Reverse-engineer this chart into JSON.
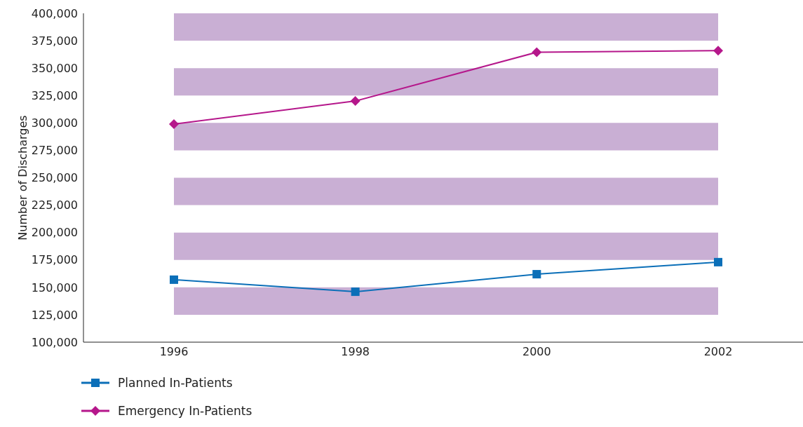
{
  "chart_data": {
    "type": "line",
    "ylabel": "Number of Discharges",
    "categories": [
      "1996",
      "1998",
      "2000",
      "2002"
    ],
    "series": [
      {
        "name": "Planned In-Patients",
        "color": "#0b6fb8",
        "marker": "square",
        "values": [
          157000,
          146000,
          162000,
          173000
        ]
      },
      {
        "name": "Emergency In-Patients",
        "color": "#b5178b",
        "marker": "diamond",
        "values": [
          299000,
          320000,
          364500,
          366000
        ]
      }
    ],
    "ylim": [
      100000,
      400000
    ],
    "yticks": [
      {
        "value": 100000,
        "label": "100,000"
      },
      {
        "value": 125000,
        "label": "125,000"
      },
      {
        "value": 150000,
        "label": "150,000"
      },
      {
        "value": 175000,
        "label": "175,000"
      },
      {
        "value": 200000,
        "label": "200,000"
      },
      {
        "value": 225000,
        "label": "225,000"
      },
      {
        "value": 250000,
        "label": "250,000"
      },
      {
        "value": 275000,
        "label": "275,000"
      },
      {
        "value": 300000,
        "label": "300,000"
      },
      {
        "value": 325000,
        "label": "325,000"
      },
      {
        "value": 350000,
        "label": "350,000"
      },
      {
        "value": 375000,
        "label": "375,000"
      },
      {
        "value": 400000,
        "label": "400,000"
      }
    ],
    "bands": [
      {
        "axis": "y",
        "from": 125000,
        "to": 150000,
        "color": "#c9afd4"
      },
      {
        "axis": "y",
        "from": 175000,
        "to": 200000,
        "color": "#c9afd4"
      },
      {
        "axis": "y",
        "from": 225000,
        "to": 250000,
        "color": "#c9afd4"
      },
      {
        "axis": "y",
        "from": 275000,
        "to": 300000,
        "color": "#c9afd4"
      },
      {
        "axis": "y",
        "from": 325000,
        "to": 350000,
        "color": "#c9afd4"
      },
      {
        "axis": "y",
        "from": 375000,
        "to": 400000,
        "color": "#c9afd4"
      }
    ],
    "grid": false,
    "legend": "bottom left",
    "line_style": "solid"
  }
}
